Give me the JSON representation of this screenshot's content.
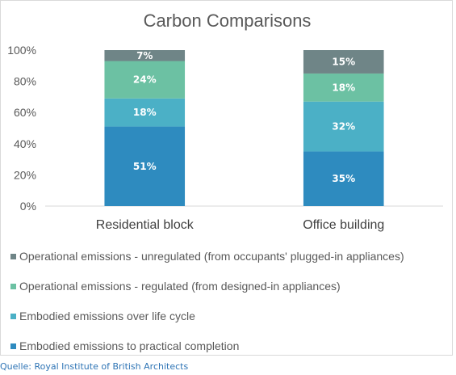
{
  "chart_data": {
    "type": "bar",
    "stacked": true,
    "title": "Carbon Comparisons",
    "xlabel": "",
    "ylabel": "",
    "ylim": [
      0,
      100
    ],
    "yticks": [
      "0%",
      "20%",
      "40%",
      "60%",
      "80%",
      "100%"
    ],
    "categories": [
      "Residential block",
      "Office building"
    ],
    "series": [
      {
        "name": "Embodied emissions to practical completion",
        "values": [
          51,
          35
        ],
        "labels": [
          "51%",
          "35%"
        ],
        "color": "#2e8bbf"
      },
      {
        "name": "Embodied emissions over life cycle",
        "values": [
          18,
          32
        ],
        "labels": [
          "18%",
          "32%"
        ],
        "color": "#4bb0c6"
      },
      {
        "name": "Operational emissions - regulated (from designed-in appliances)",
        "values": [
          24,
          18
        ],
        "labels": [
          "24%",
          "18%"
        ],
        "color": "#6cc1a3"
      },
      {
        "name": "Operational emissions - unregulated (from occupants' plugged-in appliances)",
        "values": [
          7,
          15
        ],
        "labels": [
          "7%",
          "15%"
        ],
        "color": "#6f8587"
      }
    ],
    "legend_order": [
      3,
      2,
      1,
      0
    ],
    "grid": false,
    "legend_position": "bottom"
  },
  "source": "Quelle: Royal Institute of British Architects"
}
